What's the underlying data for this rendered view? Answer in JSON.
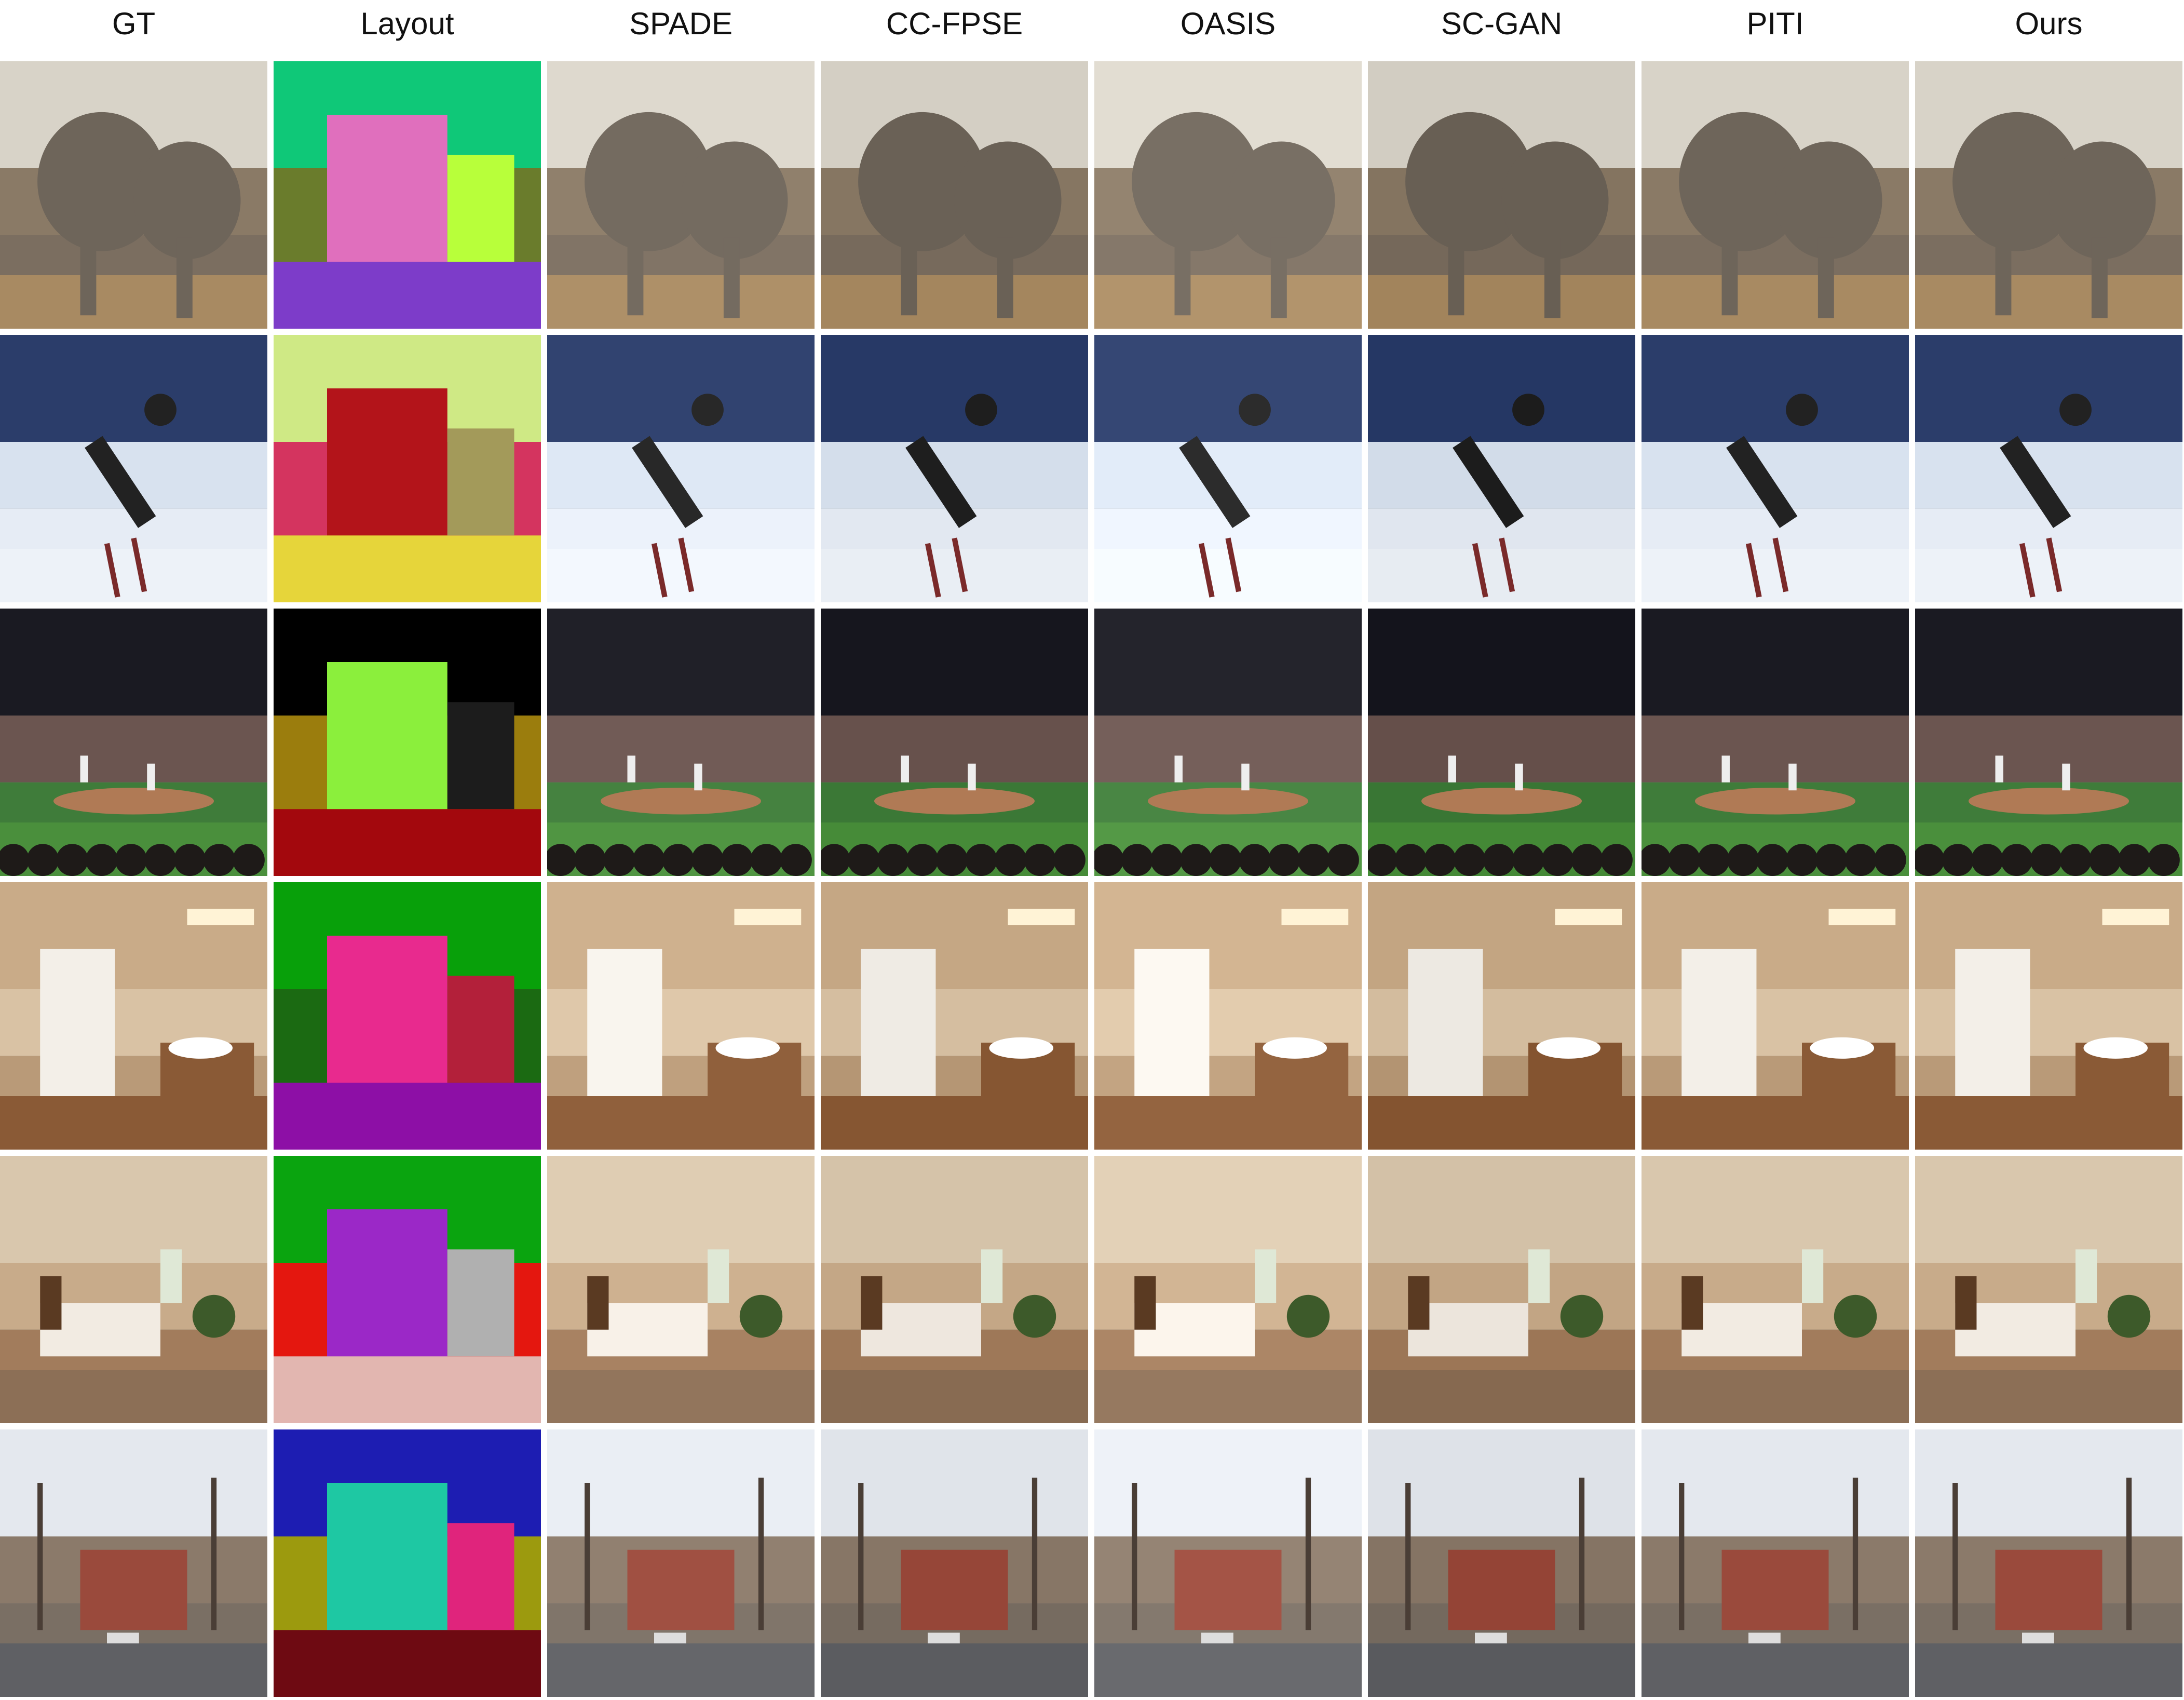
{
  "figure": {
    "columns": [
      {
        "label": "GT"
      },
      {
        "label": "Layout"
      },
      {
        "label": "SPADE"
      },
      {
        "label": "CC-FPSE"
      },
      {
        "label": "OASIS"
      },
      {
        "label": "SC-GAN"
      },
      {
        "label": "PITI"
      },
      {
        "label": "Ours"
      }
    ],
    "rows": [
      {
        "scene": "elephants",
        "palette": {
          "sky": "#d8d3c8",
          "top": "#8a7a66",
          "mid": "#7b6e60",
          "ground": "#a88a62",
          "subject": "#6e655a"
        }
      },
      {
        "scene": "skier",
        "palette": {
          "sky": "#2b3d6a",
          "top": "#d8e2ef",
          "mid": "#e6ecf5",
          "ground": "#edf2f8",
          "subject": "#222222"
        }
      },
      {
        "scene": "baseball",
        "palette": {
          "sky": "#1a1a22",
          "top": "#6b5550",
          "mid": "#3f7c3a",
          "ground": "#4a8f3c",
          "subject": "#2a2a2a"
        }
      },
      {
        "scene": "bathroom",
        "palette": {
          "sky": "#c9ab88",
          "top": "#d9c2a4",
          "mid": "#b99a78",
          "ground": "#8a5a36",
          "subject": "#f3efe8"
        }
      },
      {
        "scene": "bedroom",
        "palette": {
          "sky": "#d9c7ad",
          "top": "#c8ab8a",
          "mid": "#a27c5c",
          "ground": "#8c6f56",
          "subject": "#f2ebe2"
        }
      },
      {
        "scene": "street",
        "palette": {
          "sky": "#e4e8ee",
          "top": "#8b7a6a",
          "mid": "#7a6f64",
          "ground": "#5f6064",
          "subject": "#9a4a3c"
        }
      }
    ],
    "layout_palettes": [
      {
        "a": "#0fc878",
        "b": "#6a7c2c",
        "c": "#e06fbd",
        "d": "#7d3cc9",
        "e": "#b8ff3a"
      },
      {
        "a": "#cfe985",
        "b": "#d4345f",
        "c": "#b3141a",
        "d": "#e6d53a",
        "e": "#a39a5a"
      },
      {
        "a": "#000000",
        "b": "#9b7d0d",
        "c": "#8bef3c",
        "d": "#a3080d",
        "e": "#1c1c1c"
      },
      {
        "a": "#08a00a",
        "b": "#1b6a12",
        "c": "#e82a8e",
        "d": "#8d0fa6",
        "e": "#b3203a"
      },
      {
        "a": "#0aa40f",
        "b": "#e4170f",
        "c": "#9b28c7",
        "d": "#e2b6b0",
        "e": "#b0b0b0"
      },
      {
        "a": "#1d1db2",
        "b": "#9c9a0e",
        "c": "#1ec8a3",
        "d": "#6e0a12",
        "e": "#e0247c"
      }
    ]
  }
}
